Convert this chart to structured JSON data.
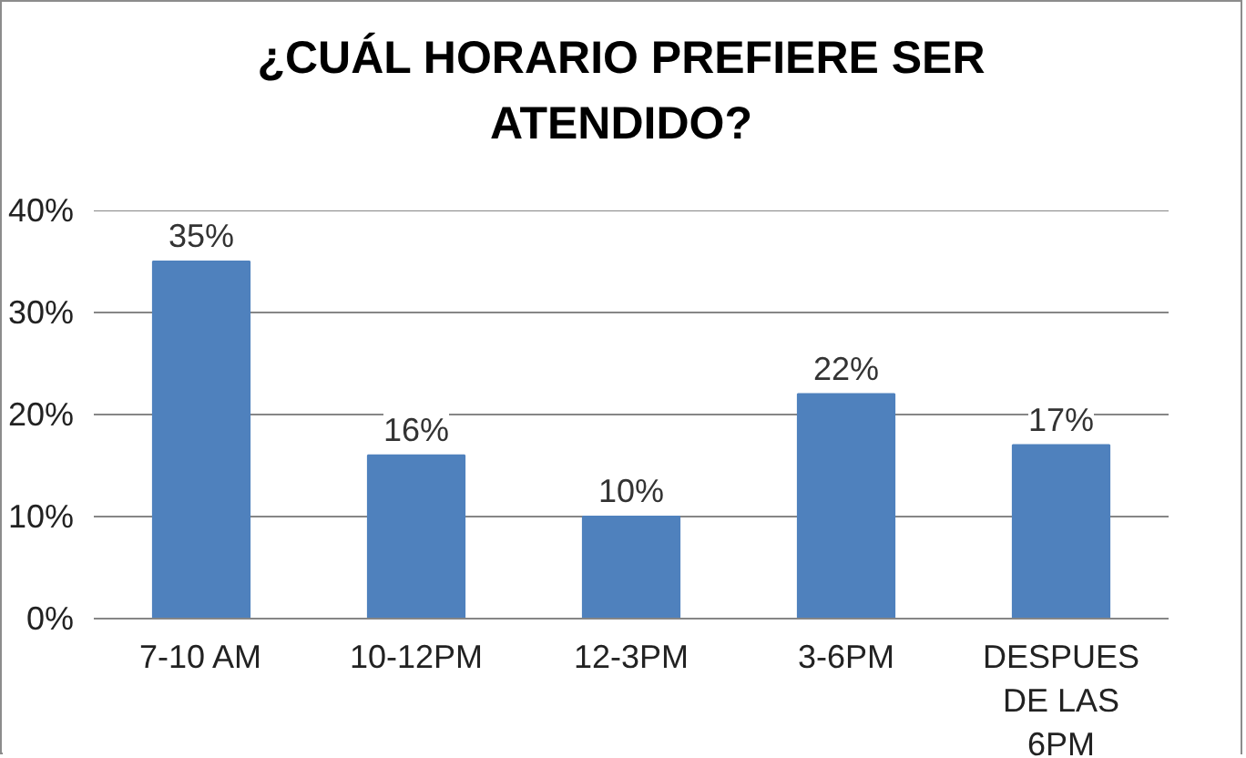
{
  "chart_data": {
    "type": "bar",
    "title": "¿CUÁL HORARIO PREFIERE SER ATENDIDO?",
    "categories": [
      "7-10 AM",
      "10-12PM",
      "12-3PM",
      "3-6PM",
      "DESPUES DE LAS 6PM"
    ],
    "values": [
      35,
      16,
      10,
      22,
      17
    ],
    "value_labels": [
      "35%",
      "16%",
      "10%",
      "22%",
      "17%"
    ],
    "color": "#4f81bd",
    "ylim": [
      0,
      40
    ],
    "yticks": [
      {
        "value": 0,
        "label": "0%"
      },
      {
        "value": 10,
        "label": "10%"
      },
      {
        "value": 20,
        "label": "20%"
      },
      {
        "value": 30,
        "label": "30%"
      },
      {
        "value": 40,
        "label": "40%"
      }
    ],
    "grid": "y"
  }
}
